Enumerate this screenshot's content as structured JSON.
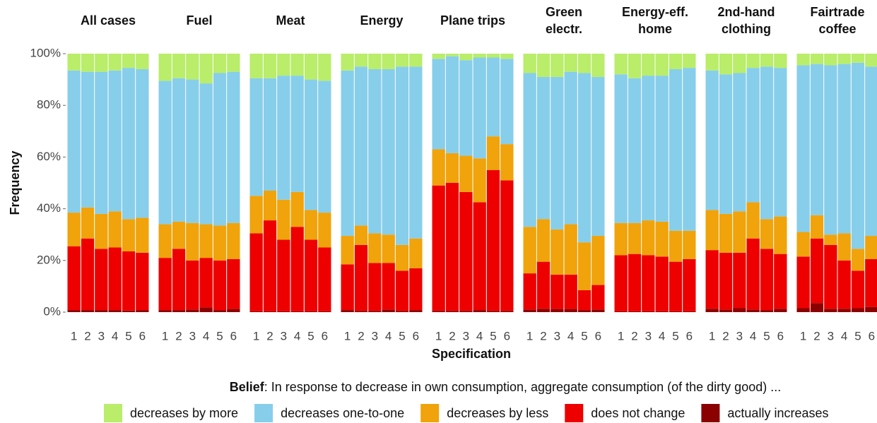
{
  "chart_data": {
    "type": "bar",
    "stacked": true,
    "ylabel": "Frequency",
    "xlabel": "Specification",
    "legend_title": "Belief",
    "legend_subtitle": ": In response to decrease in own consumption, aggregate consumption (of the dirty good) ...",
    "ylim": [
      0,
      100
    ],
    "yticks": [
      {
        "value": 0,
        "label": "0%"
      },
      {
        "value": 20,
        "label": "20%"
      },
      {
        "value": 40,
        "label": "40%"
      },
      {
        "value": 60,
        "label": "60%"
      },
      {
        "value": 80,
        "label": "80%"
      },
      {
        "value": 100,
        "label": "100%"
      }
    ],
    "grid": false,
    "categories": [
      "1",
      "2",
      "3",
      "4",
      "5",
      "6"
    ],
    "series": [
      {
        "name": "actually increases",
        "color": "#8b0000"
      },
      {
        "name": "does not change",
        "color": "#ee0000"
      },
      {
        "name": "decreases by less",
        "color": "#f0a30a"
      },
      {
        "name": "decreases one-to-one",
        "color": "#87ceeb"
      },
      {
        "name": "decreases by more",
        "color": "#b9ed6a"
      }
    ],
    "legend_order": [
      4,
      3,
      2,
      1,
      0
    ],
    "panels": [
      {
        "title": [
          "All cases"
        ],
        "series": [
          {
            "values": [
              0.8,
              0.8,
              0.8,
              0.8,
              0.6,
              0.8
            ]
          },
          {
            "values": [
              24.7,
              27.7,
              23.7,
              24.2,
              22.9,
              22.2
            ]
          },
          {
            "values": [
              13,
              12,
              13.5,
              14,
              12.5,
              13.5
            ]
          },
          {
            "values": [
              55,
              52.5,
              55,
              54.5,
              58.5,
              57.5
            ]
          },
          {
            "values": [
              6.5,
              7,
              7,
              6.5,
              5.5,
              6
            ]
          }
        ]
      },
      {
        "title": [
          "Fuel"
        ],
        "series": [
          {
            "values": [
              0.8,
              0.8,
              1,
              1.8,
              0.8,
              1.2
            ]
          },
          {
            "values": [
              20.2,
              23.7,
              19,
              19.2,
              19.2,
              19.3
            ]
          },
          {
            "values": [
              13,
              10.5,
              14.5,
              13,
              13.5,
              14
            ]
          },
          {
            "values": [
              55.5,
              55.5,
              55.5,
              54.5,
              59,
              58.5
            ]
          },
          {
            "values": [
              10.5,
              9.5,
              10,
              11.5,
              7.5,
              7
            ]
          }
        ]
      },
      {
        "title": [
          "Meat"
        ],
        "series": [
          {
            "values": [
              0.3,
              0.3,
              0.3,
              0.3,
              0.3,
              0.3
            ]
          },
          {
            "values": [
              30.2,
              35.2,
              27.7,
              32.7,
              27.7,
              24.7
            ]
          },
          {
            "values": [
              14.5,
              11.5,
              15.5,
              13.5,
              11.5,
              13.5
            ]
          },
          {
            "values": [
              45.5,
              43.5,
              48,
              45,
              50.5,
              51
            ]
          },
          {
            "values": [
              9.5,
              9.5,
              8.5,
              8.5,
              10,
              10.5
            ]
          }
        ]
      },
      {
        "title": [
          "Energy"
        ],
        "series": [
          {
            "values": [
              0.8,
              0.5,
              0.5,
              1,
              0.5,
              0.8
            ]
          },
          {
            "values": [
              17.7,
              25.5,
              18.5,
              18,
              15.5,
              16.2
            ]
          },
          {
            "values": [
              11,
              7.5,
              11.5,
              11,
              10,
              11.5
            ]
          },
          {
            "values": [
              64,
              61.5,
              63.5,
              64,
              69,
              66.5
            ]
          },
          {
            "values": [
              6.5,
              5,
              6,
              6,
              5,
              5
            ]
          }
        ]
      },
      {
        "title": [
          "Plane trips"
        ],
        "series": [
          {
            "values": [
              0.5,
              0.5,
              0.5,
              0.8,
              0.5,
              0.5
            ]
          },
          {
            "values": [
              48.5,
              49.5,
              46,
              41.7,
              54.5,
              50.5
            ]
          },
          {
            "values": [
              14,
              11.5,
              14,
              17,
              13,
              14
            ]
          },
          {
            "values": [
              35,
              37.5,
              37,
              39,
              30.5,
              33
            ]
          },
          {
            "values": [
              2,
              1,
              2.5,
              1.5,
              1.5,
              2
            ]
          }
        ]
      },
      {
        "title": [
          "Green",
          "electr."
        ],
        "series": [
          {
            "values": [
              1,
              1.3,
              1.2,
              1.2,
              0.8,
              1
            ]
          },
          {
            "values": [
              14,
              18.2,
              13.3,
              13.3,
              7.7,
              9.5
            ]
          },
          {
            "values": [
              18,
              16.5,
              17.5,
              19.5,
              18.5,
              19
            ]
          },
          {
            "values": [
              59.5,
              55,
              59,
              59,
              65.5,
              61.5
            ]
          },
          {
            "values": [
              7.5,
              9,
              9,
              7,
              7.5,
              9
            ]
          }
        ]
      },
      {
        "title": [
          "Energy-eff.",
          "home"
        ],
        "series": [
          {
            "values": [
              0.3,
              0.3,
              0.3,
              0.3,
              0.3,
              0.3
            ]
          },
          {
            "values": [
              21.7,
              22.2,
              21.7,
              21.2,
              19.2,
              20.2
            ]
          },
          {
            "values": [
              12.5,
              12,
              13.5,
              13.5,
              12,
              11
            ]
          },
          {
            "values": [
              57.5,
              56,
              56,
              56.5,
              62.5,
              63
            ]
          },
          {
            "values": [
              8,
              9.5,
              8.5,
              8.5,
              6,
              5.5
            ]
          }
        ]
      },
      {
        "title": [
          "2nd-hand",
          "clothing"
        ],
        "series": [
          {
            "values": [
              1.3,
              1,
              1.5,
              1,
              0.8,
              1.3
            ]
          },
          {
            "values": [
              22.7,
              22,
              21.5,
              27.5,
              23.7,
              21.2
            ]
          },
          {
            "values": [
              15.5,
              15,
              16,
              14,
              11.5,
              14.5
            ]
          },
          {
            "values": [
              54,
              54,
              53.5,
              52,
              59,
              57.5
            ]
          },
          {
            "values": [
              6.5,
              8,
              7.5,
              5.5,
              5,
              5.5
            ]
          }
        ]
      },
      {
        "title": [
          "Fairtrade",
          "coffee"
        ],
        "series": [
          {
            "values": [
              1.5,
              3.5,
              1.3,
              1.3,
              1.5,
              2
            ]
          },
          {
            "values": [
              20,
              25,
              24.7,
              18.7,
              14.5,
              18.5
            ]
          },
          {
            "values": [
              9.5,
              9,
              4,
              10.5,
              8.5,
              9
            ]
          },
          {
            "values": [
              64.5,
              58.5,
              65.5,
              65.5,
              72,
              65.5
            ]
          },
          {
            "values": [
              4.5,
              4,
              4.5,
              4,
              3.5,
              5
            ]
          }
        ]
      }
    ]
  }
}
